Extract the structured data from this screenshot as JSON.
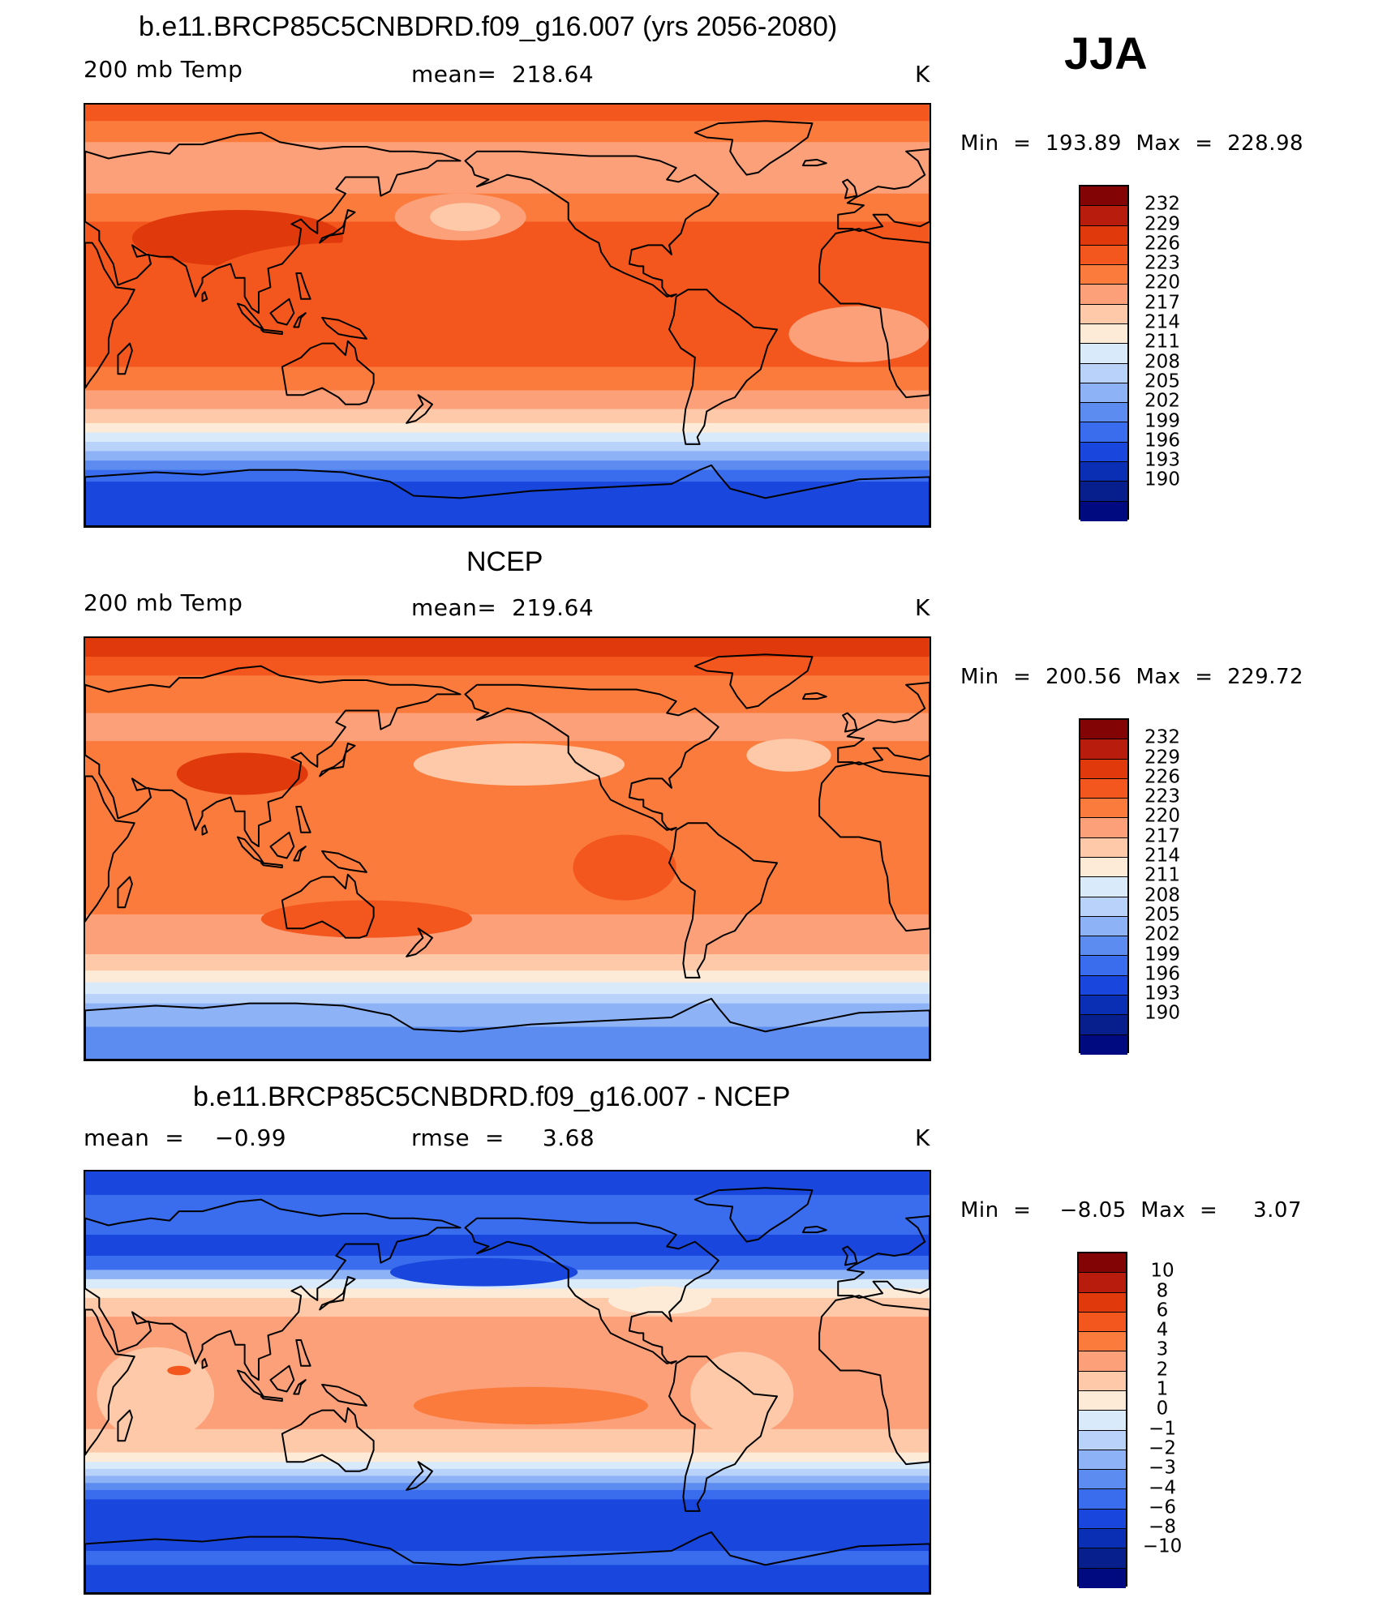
{
  "season": "JJA",
  "panels": [
    {
      "id": "model",
      "title": "b.e11.BRCP85C5CNBDRD.f09_g16.007 (yrs 2056-2080)",
      "left_label": "200 mb Temp",
      "center_label": "mean=  218.64",
      "units": "K",
      "minmax": "Min  =  193.89  Max  =  228.98",
      "colorbar_labels": [
        "232",
        "229",
        "226",
        "223",
        "220",
        "217",
        "214",
        "211",
        "208",
        "205",
        "202",
        "199",
        "196",
        "193",
        "190"
      ],
      "map_style": "model"
    },
    {
      "id": "obs",
      "title": "NCEP",
      "left_label": "200 mb Temp",
      "center_label": "mean=  219.64",
      "units": "K",
      "minmax": "Min  =  200.56  Max  =  229.72",
      "colorbar_labels": [
        "232",
        "229",
        "226",
        "223",
        "220",
        "217",
        "214",
        "211",
        "208",
        "205",
        "202",
        "199",
        "196",
        "193",
        "190"
      ],
      "map_style": "obs"
    },
    {
      "id": "diff",
      "title": "b.e11.BRCP85C5CNBDRD.f09_g16.007 - NCEP",
      "left_label": "mean  =    −0.99",
      "center_label": "rmse  =     3.68",
      "units": "K",
      "minmax": "Min  =    −8.05  Max  =     3.07",
      "colorbar_labels": [
        "10",
        "8",
        "6",
        "4",
        "3",
        "2",
        "1",
        "0",
        "−1",
        "−2",
        "−3",
        "−4",
        "−6",
        "−8",
        "−10"
      ],
      "map_style": "diff"
    }
  ],
  "colorbar_colors": [
    "#830404",
    "#b81c0c",
    "#e03a0c",
    "#f4571d",
    "#fb7b3d",
    "#fca07a",
    "#fdc9a8",
    "#fdebd8",
    "#d9ebfb",
    "#b9d2fa",
    "#8eb2f6",
    "#5d8cf0",
    "#3a6cee",
    "#1946dc",
    "#0a2fb4",
    "#061f8c",
    "#000a80"
  ]
}
